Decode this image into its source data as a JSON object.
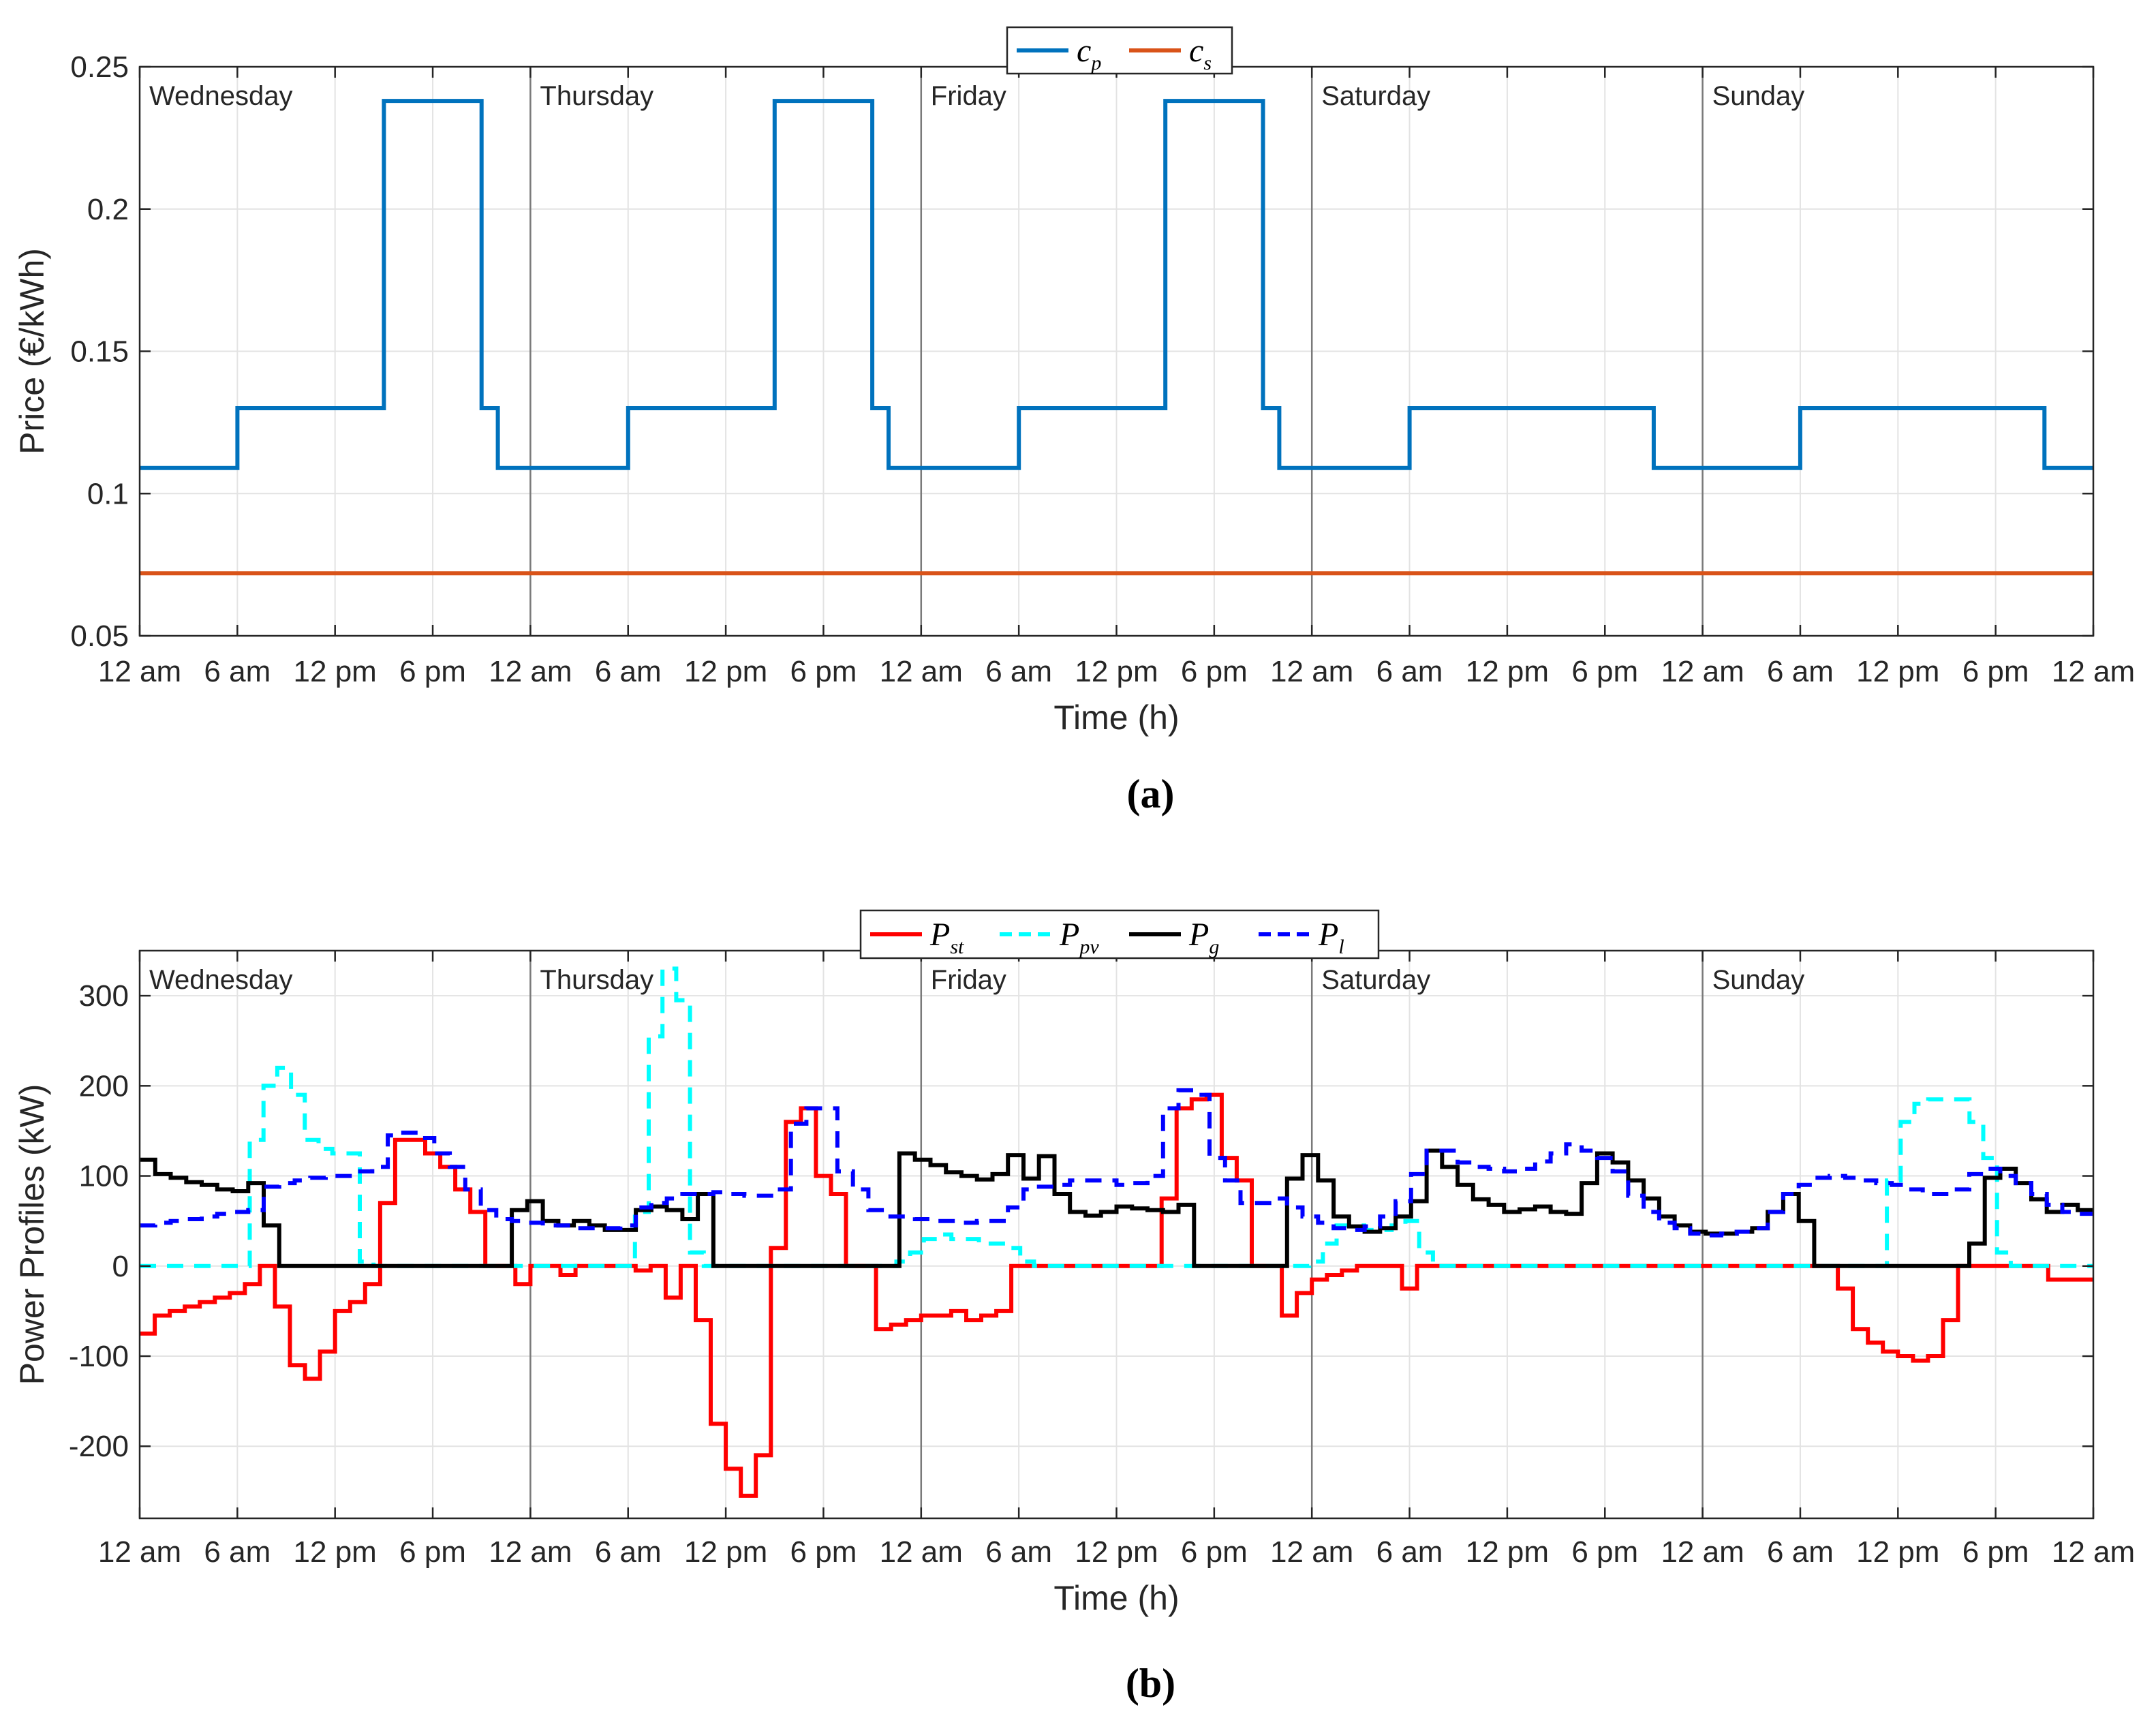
{
  "chart_data": [
    {
      "type": "line",
      "panel": "a",
      "caption": "(a)",
      "xlabel": "Time (h)",
      "ylabel": "Price (€/kWh)",
      "xlim": [
        0,
        120
      ],
      "ylim": [
        0.05,
        0.25
      ],
      "yticks": [
        0.05,
        0.1,
        0.15,
        0.2,
        0.25
      ],
      "ytick_labels": [
        "0.05",
        "0.1",
        "0.15",
        "0.2",
        "0.25"
      ],
      "xtick_labels": [
        "12 am",
        "6 am",
        "12 pm",
        "6 pm",
        "12 am",
        "6 am",
        "12 pm",
        "6 pm",
        "12 am",
        "6 am",
        "12 pm",
        "6 pm",
        "12 am",
        "6 am",
        "12 pm",
        "6 pm",
        "12 am",
        "6 am",
        "12 pm",
        "6 pm",
        "12 am"
      ],
      "days": [
        "Wednesday",
        "Thursday",
        "Friday",
        "Saturday",
        "Sunday"
      ],
      "legend_position": "top-center",
      "grid": true,
      "series": [
        {
          "name": "c_p",
          "label": "c",
          "sub": "p",
          "color": "#0072BD",
          "dash": "",
          "x": [
            0,
            6,
            6,
            15,
            15,
            21,
            21,
            22,
            22,
            30,
            30,
            39,
            39,
            45,
            45,
            46,
            46,
            54,
            54,
            63,
            63,
            69,
            69,
            70,
            70,
            78,
            78,
            93,
            93,
            102,
            102,
            117,
            117,
            120
          ],
          "y": [
            0.109,
            0.109,
            0.13,
            0.13,
            0.238,
            0.238,
            0.13,
            0.13,
            0.109,
            0.109,
            0.13,
            0.13,
            0.238,
            0.238,
            0.13,
            0.13,
            0.109,
            0.109,
            0.13,
            0.13,
            0.238,
            0.238,
            0.13,
            0.13,
            0.109,
            0.109,
            0.13,
            0.13,
            0.109,
            0.109,
            0.13,
            0.13,
            0.109,
            0.109
          ]
        },
        {
          "name": "c_s",
          "label": "c",
          "sub": "s",
          "color": "#D95319",
          "dash": "",
          "x": [
            0,
            120
          ],
          "y": [
            0.072,
            0.072
          ]
        }
      ]
    },
    {
      "type": "line",
      "panel": "b",
      "caption": "(b)",
      "xlabel": "Time (h)",
      "ylabel": "Power Profiles (kW)",
      "xlim": [
        0,
        120
      ],
      "ylim": [
        -280,
        350
      ],
      "yticks": [
        -200,
        -100,
        0,
        100,
        200,
        300
      ],
      "ytick_labels": [
        "-200",
        "-100",
        "0",
        "100",
        "200",
        "300"
      ],
      "xtick_labels": [
        "12 am",
        "6 am",
        "12 pm",
        "6 pm",
        "12 am",
        "6 am",
        "12 pm",
        "6 pm",
        "12 am",
        "6 am",
        "12 pm",
        "6 pm",
        "12 am",
        "6 am",
        "12 pm",
        "6 pm",
        "12 am",
        "6 am",
        "12 pm",
        "6 pm",
        "12 am"
      ],
      "days": [
        "Wednesday",
        "Thursday",
        "Friday",
        "Saturday",
        "Sunday"
      ],
      "legend_position": "top-center",
      "grid": true,
      "series": [
        {
          "name": "P_st",
          "label": "P",
          "sub": "st",
          "color": "#FF0000",
          "dash": "",
          "values": [
            -75,
            -55,
            -50,
            -45,
            -40,
            -35,
            -30,
            -20,
            0,
            -45,
            -110,
            -125,
            -95,
            -50,
            -40,
            -20,
            70,
            140,
            140,
            125,
            110,
            85,
            60,
            0,
            0,
            -20,
            0,
            0,
            -10,
            0,
            0,
            0,
            0,
            -5,
            0,
            -35,
            0,
            -60,
            -175,
            -225,
            -255,
            -210,
            20,
            160,
            175,
            100,
            80,
            0,
            0,
            -70,
            -65,
            -60,
            -55,
            -55,
            -50,
            -60,
            -55,
            -50,
            0,
            0,
            0,
            0,
            0,
            0,
            0,
            0,
            0,
            0,
            75,
            175,
            185,
            190,
            120,
            95,
            0,
            0,
            -55,
            -30,
            -15,
            -10,
            -5,
            0,
            0,
            0,
            -25,
            0,
            0,
            0,
            0,
            0,
            0,
            0,
            0,
            0,
            0,
            0,
            0,
            0,
            0,
            0,
            0,
            0,
            0,
            0,
            0,
            0,
            0,
            0,
            0,
            0,
            0,
            0,
            0,
            -25,
            -70,
            -85,
            -95,
            -100,
            -105,
            -100,
            -60,
            0,
            0,
            0,
            0,
            0,
            0,
            -15,
            -15,
            -15
          ]
        },
        {
          "name": "P_pv",
          "label": "P",
          "sub": "pv",
          "color": "#00FFFF",
          "dash": "24 16",
          "values": [
            0,
            0,
            0,
            0,
            0,
            0,
            0,
            0,
            140,
            200,
            220,
            190,
            140,
            130,
            125,
            125,
            5,
            0,
            0,
            0,
            0,
            0,
            0,
            0,
            0,
            0,
            0,
            0,
            0,
            0,
            0,
            0,
            0,
            0,
            0,
            0,
            60,
            255,
            330,
            295,
            15,
            0,
            0,
            0,
            0,
            0,
            0,
            0,
            0,
            0,
            0,
            0,
            0,
            0,
            0,
            5,
            15,
            30,
            35,
            30,
            30,
            25,
            25,
            20,
            5,
            0,
            0,
            0,
            0,
            0,
            0,
            0,
            0,
            0,
            0,
            0,
            0,
            0,
            0,
            0,
            0,
            0,
            0,
            0,
            0,
            5,
            25,
            45,
            45,
            40,
            40,
            45,
            50,
            15,
            0,
            0,
            0,
            0,
            0,
            0,
            0,
            0,
            0,
            0,
            0,
            0,
            0,
            0,
            0,
            0,
            0,
            0,
            0,
            0,
            0,
            0,
            0,
            0,
            0,
            0,
            0,
            0,
            0,
            0,
            0,
            0,
            0,
            95,
            160,
            180,
            185,
            185,
            185,
            160,
            120,
            15,
            0,
            0,
            0,
            0,
            0,
            0
          ]
        },
        {
          "name": "P_g",
          "label": "P",
          "sub": "g",
          "color": "#000000",
          "dash": "",
          "values": [
            118,
            102,
            98,
            93,
            90,
            85,
            83,
            92,
            45,
            0,
            0,
            0,
            0,
            0,
            0,
            0,
            0,
            0,
            0,
            0,
            0,
            0,
            0,
            0,
            62,
            72,
            50,
            45,
            50,
            45,
            40,
            40,
            62,
            66,
            62,
            52,
            80,
            0,
            0,
            0,
            0,
            0,
            0,
            0,
            0,
            0,
            0,
            0,
            0,
            125,
            118,
            112,
            104,
            100,
            96,
            102,
            123,
            97,
            122,
            80,
            60,
            56,
            60,
            66,
            64,
            62,
            60,
            68,
            0,
            0,
            0,
            0,
            0,
            0,
            97,
            123,
            95,
            55,
            44,
            38,
            42,
            55,
            72,
            128,
            110,
            90,
            74,
            68,
            60,
            63,
            66,
            60,
            58,
            92,
            125,
            115,
            95,
            75,
            55,
            45,
            38,
            36,
            36,
            38,
            42,
            60,
            80,
            50,
            0,
            0,
            0,
            0,
            0,
            0,
            0,
            0,
            0,
            0,
            25,
            98,
            108,
            92,
            74,
            60,
            68,
            62
          ]
        },
        {
          "name": "P_l",
          "label": "P",
          "sub": "l",
          "color": "#0000FF",
          "dash": "24 16",
          "values": [
            45,
            48,
            50,
            52,
            55,
            58,
            60,
            62,
            88,
            92,
            95,
            98,
            100,
            100,
            105,
            110,
            145,
            148,
            142,
            125,
            110,
            85,
            62,
            52,
            50,
            48,
            45,
            45,
            42,
            42,
            42,
            45,
            65,
            70,
            75,
            80,
            80,
            82,
            80,
            78,
            78,
            85,
            158,
            175,
            175,
            105,
            85,
            62,
            55,
            55,
            52,
            50,
            50,
            48,
            50,
            50,
            65,
            85,
            88,
            90,
            95,
            95,
            95,
            90,
            92,
            100,
            175,
            195,
            190,
            120,
            95,
            70,
            70,
            75,
            65,
            55,
            48,
            42,
            40,
            44,
            55,
            72,
            102,
            128,
            128,
            115,
            110,
            108,
            105,
            108,
            116,
            125,
            135,
            128,
            120,
            105,
            78,
            60,
            48,
            42,
            36,
            34,
            36,
            38,
            42,
            60,
            80,
            90,
            98,
            100,
            98,
            95,
            92,
            90,
            85,
            80,
            80,
            85,
            102,
            108,
            100,
            92,
            80,
            68,
            60,
            58
          ]
        }
      ]
    }
  ]
}
